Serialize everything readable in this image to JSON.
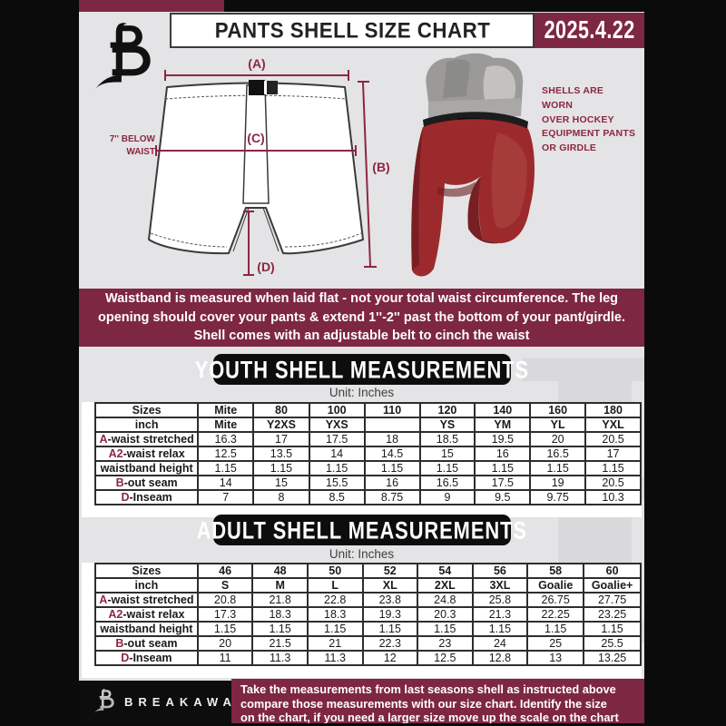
{
  "colors": {
    "maroon": "#7E2742",
    "accent": "#8D2741",
    "bg_gray": "#E4E3E5",
    "black": "#0b0b0b"
  },
  "header": {
    "title": "PANTS SHELL SIZE CHART",
    "date": "2025.4.22"
  },
  "diagram": {
    "label_a": "(A)",
    "label_b": "(B)",
    "label_c": "(C)",
    "label_d": "(D)",
    "side_note": "7'' BELOW\nWAIST"
  },
  "photo": {
    "caption": "SHELLS ARE WORN\nOVER HOCKEY\nEQUIPMENT PANTS\nOR GIRDLE"
  },
  "notice": {
    "text": "Waistband is measured when laid flat - not your total waist circumference. The leg\nopening should cover your pants & extend 1''-2'' past the bottom of your pant/girdle.\nShell comes with an adjustable belt to cinch the waist"
  },
  "youth": {
    "heading": "YOUTH SHELL MEASUREMENTS",
    "unit": "Unit: Inches",
    "table": {
      "rows": [
        {
          "prefix": "",
          "label": "Sizes",
          "header": true,
          "values": [
            "Mite",
            "80",
            "100",
            "110",
            "120",
            "140",
            "160",
            "180"
          ]
        },
        {
          "prefix": "",
          "label": "inch",
          "header": true,
          "values": [
            "Mite",
            "Y2XS",
            "YXS",
            "",
            "YS",
            "YM",
            "YL",
            "YXL"
          ]
        },
        {
          "prefix": "A",
          "label": "-waist stretched",
          "header": false,
          "values": [
            "16.3",
            "17",
            "17.5",
            "18",
            "18.5",
            "19.5",
            "20",
            "20.5"
          ]
        },
        {
          "prefix": "A2",
          "label": "-waist relax",
          "header": false,
          "values": [
            "12.5",
            "13.5",
            "14",
            "14.5",
            "15",
            "16",
            "16.5",
            "17"
          ]
        },
        {
          "prefix": "",
          "label": "waistband height",
          "header": false,
          "values": [
            "1.15",
            "1.15",
            "1.15",
            "1.15",
            "1.15",
            "1.15",
            "1.15",
            "1.15"
          ]
        },
        {
          "prefix": "B",
          "label": "-out seam",
          "header": false,
          "values": [
            "14",
            "15",
            "15.5",
            "16",
            "16.5",
            "17.5",
            "19",
            "20.5"
          ]
        },
        {
          "prefix": "D",
          "label": "-Inseam",
          "header": false,
          "values": [
            "7",
            "8",
            "8.5",
            "8.75",
            "9",
            "9.5",
            "9.75",
            "10.3"
          ]
        }
      ]
    }
  },
  "adult": {
    "heading": "ADULT SHELL MEASUREMENTS",
    "unit": "Unit: Inches",
    "table": {
      "rows": [
        {
          "prefix": "",
          "label": "Sizes",
          "header": true,
          "values": [
            "46",
            "48",
            "50",
            "52",
            "54",
            "56",
            "58",
            "60"
          ]
        },
        {
          "prefix": "",
          "label": "inch",
          "header": true,
          "values": [
            "S",
            "M",
            "L",
            "XL",
            "2XL",
            "3XL",
            "Goalie",
            "Goalie+"
          ]
        },
        {
          "prefix": "A",
          "label": "-waist stretched",
          "header": false,
          "values": [
            "20.8",
            "21.8",
            "22.8",
            "23.8",
            "24.8",
            "25.8",
            "26.75",
            "27.75"
          ]
        },
        {
          "prefix": "A2",
          "label": "-waist relax",
          "header": false,
          "values": [
            "17.3",
            "18.3",
            "18.3",
            "19.3",
            "20.3",
            "21.3",
            "22.25",
            "23.25"
          ]
        },
        {
          "prefix": "",
          "label": "waistband height",
          "header": false,
          "values": [
            "1.15",
            "1.15",
            "1.15",
            "1.15",
            "1.15",
            "1.15",
            "1.15",
            "1.15"
          ]
        },
        {
          "prefix": "B",
          "label": "-out seam",
          "header": false,
          "values": [
            "20",
            "21.5",
            "21",
            "22.3",
            "23",
            "24",
            "25",
            "25.5"
          ]
        },
        {
          "prefix": "D",
          "label": "-Inseam",
          "header": false,
          "values": [
            "11",
            "11.3",
            "11.3",
            "12",
            "12.5",
            "12.8",
            "13",
            "13.25"
          ]
        }
      ]
    }
  },
  "footer": {
    "brand": "BREAKAWAY",
    "text": "Take the measurements from last seasons shell as instructed above\ncompare those measurements  with our size chart. Identify the size\non the chart, if you need a larger size move up the scale on the chart"
  },
  "watermark": "B"
}
